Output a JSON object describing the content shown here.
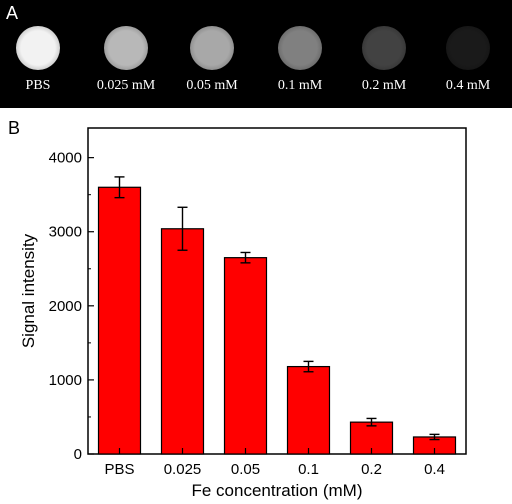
{
  "panels": {
    "a": {
      "letter": "A"
    },
    "b": {
      "letter": "B"
    }
  },
  "colors": {
    "bar": "#ff0000",
    "panel_a_background": "#000000"
  },
  "phantoms": [
    {
      "label": "PBS",
      "relative_brightness": 0.95
    },
    {
      "label": "0.025 mM",
      "relative_brightness": 0.72
    },
    {
      "label": "0.05 mM",
      "relative_brightness": 0.66
    },
    {
      "label": "0.1 mM",
      "relative_brightness": 0.5
    },
    {
      "label": "0.2 mM",
      "relative_brightness": 0.26
    },
    {
      "label": "0.4 mM",
      "relative_brightness": 0.1
    }
  ],
  "chart_data": {
    "type": "bar",
    "categories": [
      "PBS",
      "0.025",
      "0.05",
      "0.1",
      "0.2",
      "0.4"
    ],
    "values": [
      3600,
      3040,
      2650,
      1180,
      430,
      230
    ],
    "errors": [
      140,
      290,
      70,
      70,
      50,
      35
    ],
    "xlabel": "Fe concentration (mM)",
    "ylabel": "Signal intensity",
    "ylim": [
      0,
      4400
    ],
    "yticks": [
      0,
      1000,
      2000,
      3000,
      4000
    ],
    "grid": false,
    "legend": "none"
  }
}
